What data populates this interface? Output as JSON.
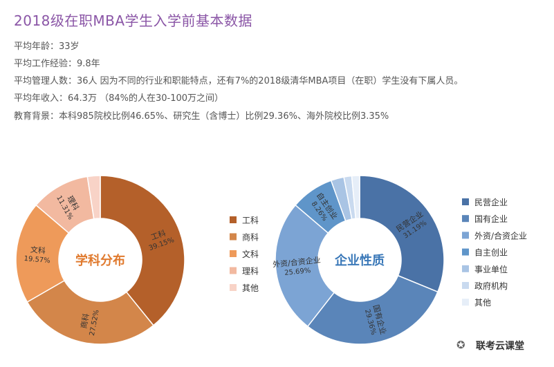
{
  "header": {
    "title": "2018级在职MBA学生入学前基本数据"
  },
  "stats": {
    "age": "平均年龄：33岁",
    "work_experience": "平均工作经验：9.8年",
    "managed_people": "平均管理人数：36人 因为不同的行业和职能特点，还有7%的2018级清华MBA项目（在职）学生没有下属人员。",
    "income": "平均年收入：64.3万 （84%的人在30-100万之间）",
    "education": "教育背景：本科985院校比例46.65%、研究生（含博士）比例29.36%、海外院校比例3.35%"
  },
  "chart_data": [
    {
      "type": "pie",
      "title": "学科分布",
      "categories": [
        "工科",
        "商科",
        "文科",
        "理科",
        "其他"
      ],
      "values": [
        39.15,
        27.52,
        19.57,
        11.31,
        2.45
      ],
      "slice_labels": [
        "工科",
        "商科",
        "文科",
        "理科",
        ""
      ],
      "value_labels": [
        "39.15%",
        "27.52%",
        "19.57%",
        "11.31%",
        ""
      ],
      "colors": [
        "#b4602a",
        "#d3864a",
        "#ee9a5a",
        "#f2b9a0",
        "#f8d3c7"
      ],
      "legend": [
        "工科",
        "商科",
        "文科",
        "理科",
        "其他"
      ],
      "legend_position": "right"
    },
    {
      "type": "pie",
      "title": "企业性质",
      "categories": [
        "民营企业",
        "国有企业",
        "外资/合资企业",
        "自主创业",
        "事业单位",
        "政府机构",
        "其他"
      ],
      "values": [
        31.19,
        29.36,
        25.69,
        8.26,
        2.5,
        1.5,
        1.5
      ],
      "slice_labels": [
        "民营企业",
        "国有企业",
        "外资/合资企业",
        "自主创业",
        "",
        "",
        ""
      ],
      "value_labels": [
        "31.19%",
        "29.36%",
        "25.69%",
        "8.26%",
        "",
        "",
        ""
      ],
      "colors": [
        "#4a72a6",
        "#5a85b9",
        "#7ca4d4",
        "#5f95c9",
        "#a9c4e4",
        "#c9daef",
        "#e6eef8"
      ],
      "legend": [
        "民营企业",
        "国有企业",
        "外资/合资企业",
        "自主创业",
        "事业单位",
        "政府机构",
        "其他"
      ],
      "legend_position": "right"
    }
  ],
  "watermark": {
    "icon": "wechat-icon",
    "text": "联考云课堂"
  }
}
